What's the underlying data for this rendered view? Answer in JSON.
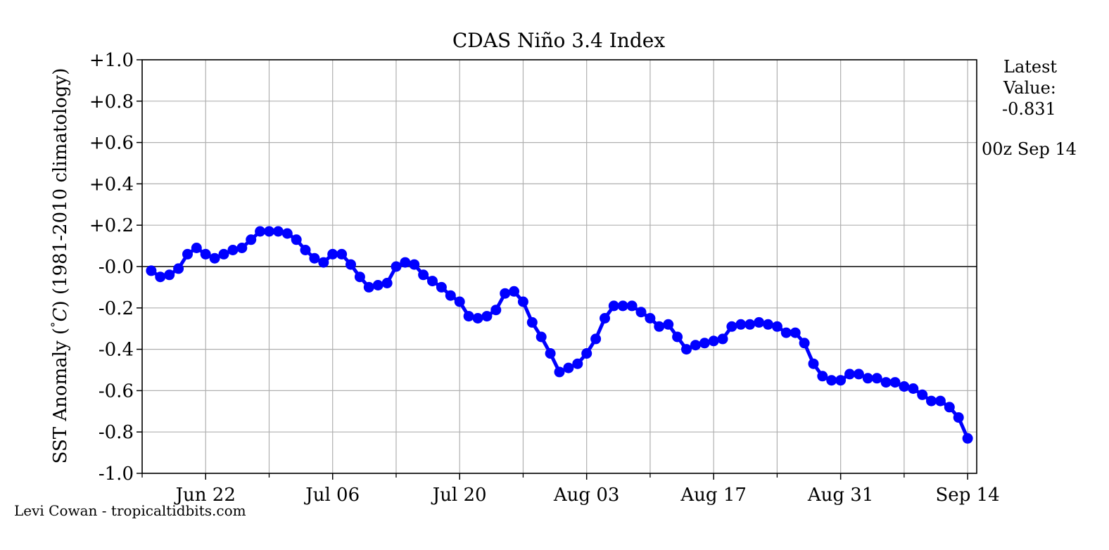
{
  "chart_data": {
    "type": "line",
    "title": "CDAS Niño 3.4 Index",
    "ylabel": "SST Anomaly (°C) (1981-2010 climatology)",
    "ylabel_parts": [
      "SST Anomaly (",
      "°",
      "C",
      ") (1981-2010 climatology)"
    ],
    "xlabel": "",
    "ylim": [
      -1.0,
      1.0
    ],
    "yticks": [
      {
        "value": 1.0,
        "label": "+1.0"
      },
      {
        "value": 0.8,
        "label": "+0.8"
      },
      {
        "value": 0.6,
        "label": "+0.6"
      },
      {
        "value": 0.4,
        "label": "+0.4"
      },
      {
        "value": 0.2,
        "label": "+0.2"
      },
      {
        "value": 0.0,
        "label": "-0.0"
      },
      {
        "value": -0.2,
        "label": "-0.2"
      },
      {
        "value": -0.4,
        "label": "-0.4"
      },
      {
        "value": -0.6,
        "label": "-0.6"
      },
      {
        "value": -0.8,
        "label": "-0.8"
      },
      {
        "value": -1.0,
        "label": "-1.0"
      }
    ],
    "xlim": [
      "Jun 15",
      "Sep 15"
    ],
    "xticks": [
      {
        "date": "Jun 22",
        "label": "Jun 22"
      },
      {
        "date": "Jul 06",
        "label": "Jul 06"
      },
      {
        "date": "Jul 20",
        "label": "Jul 20"
      },
      {
        "date": "Aug 03",
        "label": "Aug 03"
      },
      {
        "date": "Aug 17",
        "label": "Aug 17"
      },
      {
        "date": "Aug 31",
        "label": "Aug 31"
      },
      {
        "date": "Sep 14",
        "label": "Sep 14"
      }
    ],
    "minor_ticks": [
      "Jun 15",
      "Jun 29",
      "Jul 13",
      "Jul 27",
      "Aug 10",
      "Aug 24",
      "Sep 07"
    ],
    "grid": true,
    "zero_line": true,
    "series": [
      {
        "name": "",
        "color": "#0000ff",
        "x": [
          "Jun 16",
          "Jun 17",
          "Jun 18",
          "Jun 19",
          "Jun 20",
          "Jun 21",
          "Jun 22",
          "Jun 23",
          "Jun 24",
          "Jun 25",
          "Jun 26",
          "Jun 27",
          "Jun 28",
          "Jun 29",
          "Jun 30",
          "Jul 01",
          "Jul 02",
          "Jul 03",
          "Jul 04",
          "Jul 05",
          "Jul 06",
          "Jul 07",
          "Jul 08",
          "Jul 09",
          "Jul 10",
          "Jul 11",
          "Jul 12",
          "Jul 13",
          "Jul 14",
          "Jul 15",
          "Jul 16",
          "Jul 17",
          "Jul 18",
          "Jul 19",
          "Jul 20",
          "Jul 21",
          "Jul 22",
          "Jul 23",
          "Jul 24",
          "Jul 25",
          "Jul 26",
          "Jul 27",
          "Jul 28",
          "Jul 29",
          "Jul 30",
          "Jul 31",
          "Aug 01",
          "Aug 02",
          "Aug 03",
          "Aug 04",
          "Aug 05",
          "Aug 06",
          "Aug 07",
          "Aug 08",
          "Aug 09",
          "Aug 10",
          "Aug 11",
          "Aug 12",
          "Aug 13",
          "Aug 14",
          "Aug 15",
          "Aug 16",
          "Aug 17",
          "Aug 18",
          "Aug 19",
          "Aug 20",
          "Aug 21",
          "Aug 22",
          "Aug 23",
          "Aug 24",
          "Aug 25",
          "Aug 26",
          "Aug 27",
          "Aug 28",
          "Aug 29",
          "Aug 30",
          "Aug 31",
          "Sep 01",
          "Sep 02",
          "Sep 03",
          "Sep 04",
          "Sep 05",
          "Sep 06",
          "Sep 07",
          "Sep 08",
          "Sep 09",
          "Sep 10",
          "Sep 11",
          "Sep 12",
          "Sep 13",
          "Sep 14"
        ],
        "values": [
          -0.02,
          -0.05,
          -0.04,
          -0.01,
          0.06,
          0.09,
          0.06,
          0.04,
          0.06,
          0.08,
          0.09,
          0.13,
          0.17,
          0.17,
          0.17,
          0.16,
          0.13,
          0.08,
          0.04,
          0.02,
          0.06,
          0.06,
          0.01,
          -0.05,
          -0.1,
          -0.09,
          -0.08,
          -0.0,
          0.02,
          0.01,
          -0.04,
          -0.07,
          -0.1,
          -0.14,
          -0.17,
          -0.24,
          -0.25,
          -0.24,
          -0.21,
          -0.13,
          -0.12,
          -0.17,
          -0.27,
          -0.34,
          -0.42,
          -0.51,
          -0.49,
          -0.47,
          -0.42,
          -0.35,
          -0.25,
          -0.19,
          -0.19,
          -0.19,
          -0.22,
          -0.25,
          -0.29,
          -0.28,
          -0.34,
          -0.4,
          -0.38,
          -0.37,
          -0.36,
          -0.35,
          -0.29,
          -0.28,
          -0.28,
          -0.27,
          -0.28,
          -0.29,
          -0.32,
          -0.32,
          -0.37,
          -0.47,
          -0.53,
          -0.55,
          -0.55,
          -0.52,
          -0.52,
          -0.54,
          -0.54,
          -0.56,
          -0.56,
          -0.58,
          -0.59,
          -0.62,
          -0.65,
          -0.65,
          -0.68,
          -0.73,
          -0.831
        ]
      }
    ],
    "annotations": {
      "latest_label": "Latest",
      "value_label": "Value:",
      "latest_value": "-0.831",
      "latest_time": "00z Sep 14",
      "credit": "Levi Cowan - tropicaltidbits.com"
    }
  }
}
